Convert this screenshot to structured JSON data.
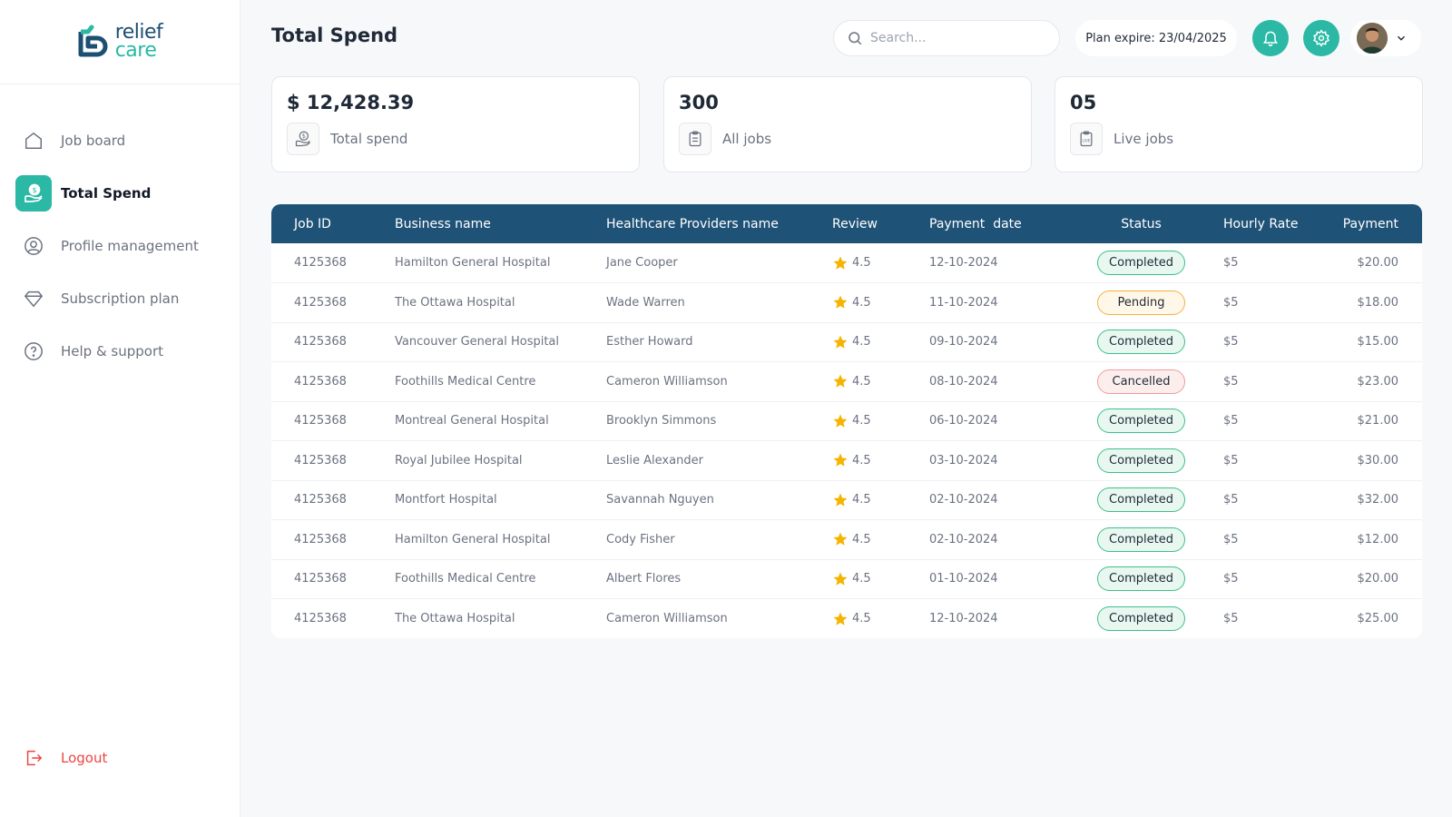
{
  "brand": {
    "line1": "relief",
    "line2": "care"
  },
  "sidebar": {
    "items": [
      {
        "label": "Job board",
        "icon": "home-icon"
      },
      {
        "label": "Total Spend",
        "icon": "hand-coin-icon"
      },
      {
        "label": "Profile management",
        "icon": "user-circle-icon"
      },
      {
        "label": "Subscription plan",
        "icon": "diamond-icon"
      },
      {
        "label": "Help & support",
        "icon": "question-icon"
      }
    ],
    "logout": "Logout"
  },
  "header": {
    "title": "Total Spend",
    "search_placeholder": "Search...",
    "plan_expire": "Plan expire: 23/04/2025"
  },
  "stats": [
    {
      "value": "$ 12,428.39",
      "label": "Total spend",
      "icon": "hand-coin-icon"
    },
    {
      "value": "300",
      "label": "All jobs",
      "icon": "clipboard-icon"
    },
    {
      "value": "05",
      "label": "Live jobs",
      "icon": "live-clipboard-icon"
    }
  ],
  "table": {
    "headers": [
      "Job ID",
      "Business name",
      "Healthcare Providers name",
      "Review",
      "Payment  date",
      "Status",
      "Hourly Rate",
      "Payment"
    ],
    "rows": [
      {
        "job_id": "4125368",
        "business": "Hamilton General Hospital",
        "provider": "Jane Cooper",
        "review": "4.5",
        "date": "12-10-2024",
        "status": "Completed",
        "status_type": "completed",
        "rate": "$5",
        "payment": "$20.00"
      },
      {
        "job_id": "4125368",
        "business": "The Ottawa Hospital",
        "provider": "Wade Warren",
        "review": "4.5",
        "date": "11-10-2024",
        "status": "Pending",
        "status_type": "pending",
        "rate": "$5",
        "payment": "$18.00"
      },
      {
        "job_id": "4125368",
        "business": "Vancouver General Hospital",
        "provider": "Esther Howard",
        "review": "4.5",
        "date": "09-10-2024",
        "status": "Completed",
        "status_type": "completed",
        "rate": "$5",
        "payment": "$15.00"
      },
      {
        "job_id": "4125368",
        "business": "Foothills Medical Centre",
        "provider": "Cameron Williamson",
        "review": "4.5",
        "date": "08-10-2024",
        "status": "Cancelled",
        "status_type": "cancelled",
        "rate": "$5",
        "payment": "$23.00"
      },
      {
        "job_id": "4125368",
        "business": "Montreal General Hospital",
        "provider": "Brooklyn Simmons",
        "review": "4.5",
        "date": "06-10-2024",
        "status": "Completed",
        "status_type": "completed",
        "rate": "$5",
        "payment": "$21.00"
      },
      {
        "job_id": "4125368",
        "business": "Royal Jubilee Hospital",
        "provider": "Leslie Alexander",
        "review": "4.5",
        "date": "03-10-2024",
        "status": "Completed",
        "status_type": "completed",
        "rate": "$5",
        "payment": "$30.00"
      },
      {
        "job_id": "4125368",
        "business": "Montfort Hospital",
        "provider": "Savannah Nguyen",
        "review": "4.5",
        "date": "02-10-2024",
        "status": "Completed",
        "status_type": "completed",
        "rate": "$5",
        "payment": "$32.00"
      },
      {
        "job_id": "4125368",
        "business": "Hamilton General Hospital",
        "provider": "Cody Fisher",
        "review": "4.5",
        "date": "02-10-2024",
        "status": "Completed",
        "status_type": "completed",
        "rate": "$5",
        "payment": "$12.00"
      },
      {
        "job_id": "4125368",
        "business": "Foothills Medical Centre",
        "provider": "Albert Flores",
        "review": "4.5",
        "date": "01-10-2024",
        "status": "Completed",
        "status_type": "completed",
        "rate": "$5",
        "payment": "$20.00"
      },
      {
        "job_id": "4125368",
        "business": "The Ottawa Hospital",
        "provider": "Cameron Williamson",
        "review": "4.5",
        "date": "12-10-2024",
        "status": "Completed",
        "status_type": "completed",
        "rate": "$5",
        "payment": "$25.00"
      }
    ]
  },
  "colors": {
    "accent": "#2bb8a5",
    "header": "#1f5277",
    "star": "#f4b400",
    "danger": "#ef4444"
  }
}
